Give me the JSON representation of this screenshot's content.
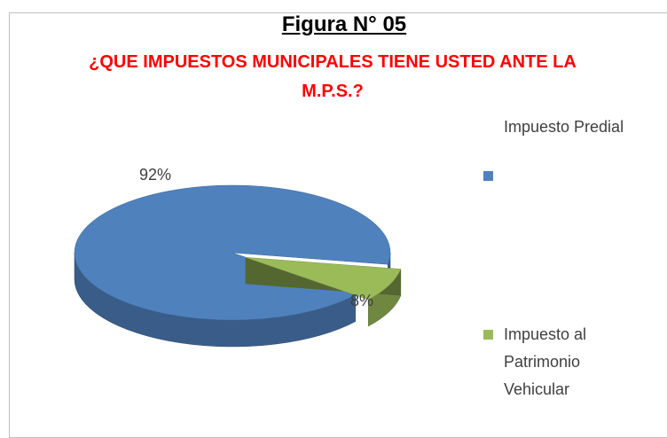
{
  "chart_data": {
    "type": "pie",
    "title": "Figura N° 05",
    "subtitle": "¿QUE IMPUESTOS MUNICIPALES TIENE USTED ANTE LA M.P.S.?",
    "categories": [
      "Impuesto Predial",
      "Impuesto al Patrimonio Vehicular"
    ],
    "values": [
      92,
      8
    ],
    "value_labels": [
      "92%",
      "8%"
    ],
    "colors": [
      "#4f81bd",
      "#9bbb59"
    ],
    "legend": "right"
  }
}
